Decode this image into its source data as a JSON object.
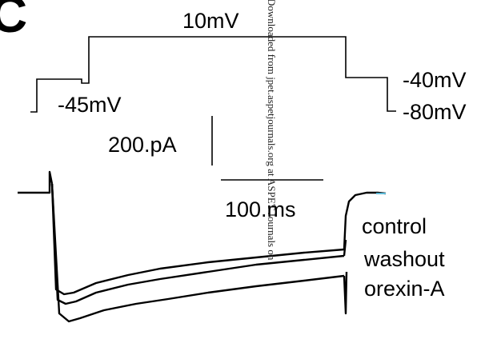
{
  "panel_letter": "C",
  "protocol": {
    "step_label": "10mV",
    "hold_label": "-45mV",
    "return_label": "-40mV",
    "end_label": "-80mV"
  },
  "scale_bars": {
    "current": "200.pA",
    "time": "100.ms"
  },
  "legend": [
    "control",
    "washout",
    "orexin-A"
  ],
  "watermark": "Downloaded from jpet.aspetjournals.org at ASPET Journals on",
  "colors": {
    "trace": "#000000",
    "tail_accent": "#5bb8d6"
  }
}
